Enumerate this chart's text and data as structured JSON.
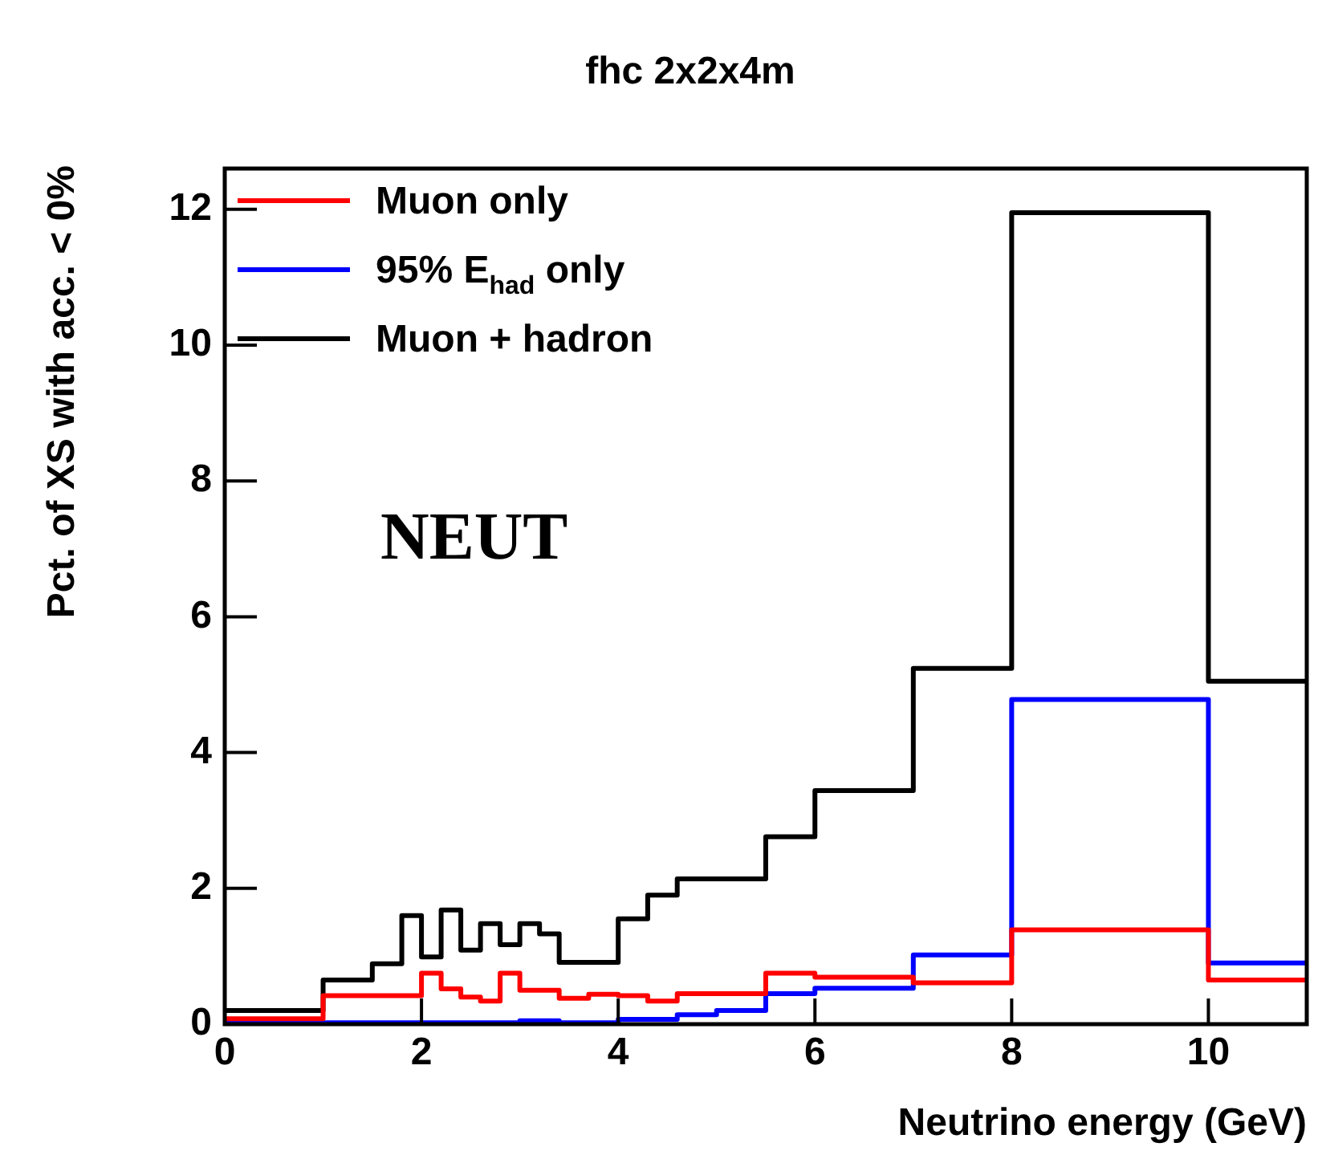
{
  "chart_data": {
    "type": "histogram",
    "title": "fhc 2x2x4m",
    "xlabel": "Neutrino energy (GeV)",
    "ylabel": "Pct. of XS with acc. < 0%",
    "bins": [
      0,
      1,
      1.5,
      1.8,
      2,
      2.2,
      2.4,
      2.6,
      2.8,
      3,
      3.2,
      3.4,
      3.7,
      4,
      4.3,
      4.6,
      5,
      5.5,
      6,
      7,
      8,
      10,
      11
    ],
    "series": [
      {
        "name": "Muon only",
        "color": "#ff0000",
        "values": [
          0.08,
          0.42,
          0.42,
          0.42,
          0.75,
          0.52,
          0.4,
          0.34,
          0.75,
          0.5,
          0.5,
          0.38,
          0.44,
          0.42,
          0.34,
          0.45,
          0.45,
          0.75,
          0.69,
          0.61,
          1.39,
          0.65
        ]
      },
      {
        "name": "95% E$_{had}$ only",
        "color": "#0000ff",
        "values": [
          0.02,
          0.02,
          0.02,
          0.02,
          0.02,
          0.02,
          0.02,
          0.02,
          0.02,
          0.05,
          0.05,
          0.02,
          0.02,
          0.07,
          0.07,
          0.14,
          0.2,
          0.45,
          0.53,
          1.02,
          4.78,
          0.9
        ]
      },
      {
        "name": "Muon + hadron",
        "color": "#000000",
        "values": [
          0.2,
          0.65,
          0.89,
          1.6,
          0.99,
          1.68,
          1.09,
          1.48,
          1.17,
          1.48,
          1.33,
          0.91,
          0.91,
          1.55,
          1.9,
          2.14,
          2.14,
          2.76,
          3.44,
          5.24,
          11.95,
          5.05
        ]
      }
    ],
    "annotations": [
      "NEUT"
    ],
    "xlim": [
      0,
      11
    ],
    "xticks": [
      0,
      2,
      4,
      6,
      8,
      10
    ],
    "ylim": [
      0,
      12.6
    ],
    "yticks": [
      0,
      2,
      4,
      6,
      8,
      10,
      12
    ],
    "legend": "top left",
    "grid": false
  }
}
